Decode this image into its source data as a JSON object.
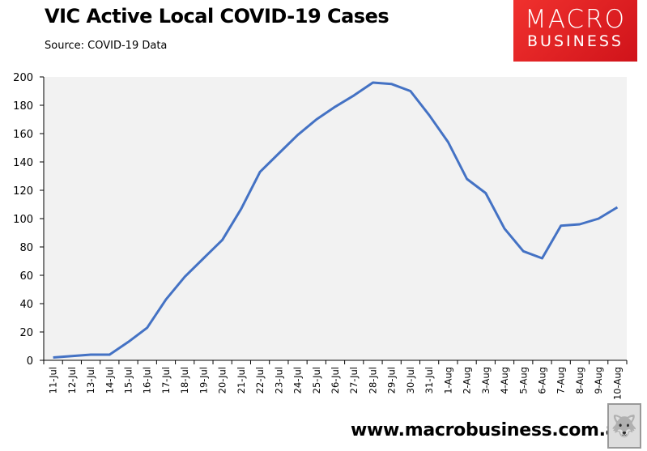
{
  "header": {
    "title": "VIC Active Local COVID-19 Cases",
    "subtitle": "Source: COVID-19 Data"
  },
  "logo": {
    "line1": "MACRO",
    "line2": "BUSINESS",
    "color": "#e8222a"
  },
  "footer": {
    "url": "www.macrobusiness.com.au",
    "mascot_icon": "wolf-icon"
  },
  "chart_data": {
    "type": "line",
    "title": "VIC Active Local COVID-19 Cases",
    "subtitle": "Source: COVID-19 Data",
    "xlabel": "",
    "ylabel": "",
    "ylim": [
      0,
      200
    ],
    "yticks": [
      0,
      20,
      40,
      60,
      80,
      100,
      120,
      140,
      160,
      180,
      200
    ],
    "grid": false,
    "legend": null,
    "plot_background": "#f2f2f2",
    "line_color": "#4472c4",
    "categories": [
      "11-Jul",
      "12-Jul",
      "13-Jul",
      "14-Jul",
      "15-Jul",
      "16-Jul",
      "17-Jul",
      "18-Jul",
      "19-Jul",
      "20-Jul",
      "21-Jul",
      "22-Jul",
      "23-Jul",
      "24-Jul",
      "25-Jul",
      "26-Jul",
      "27-Jul",
      "28-Jul",
      "29-Jul",
      "30-Jul",
      "31-Jul",
      "1-Aug",
      "2-Aug",
      "3-Aug",
      "4-Aug",
      "5-Aug",
      "6-Aug",
      "7-Aug",
      "8-Aug",
      "9-Aug",
      "10-Aug"
    ],
    "series": [
      {
        "name": "Active local cases",
        "values": [
          2,
          3,
          4,
          4,
          13,
          23,
          43,
          59,
          72,
          85,
          107,
          133,
          146,
          159,
          170,
          179,
          187,
          196,
          195,
          190,
          173,
          154,
          128,
          118,
          93,
          77,
          72,
          95,
          96,
          100,
          108
        ]
      }
    ]
  }
}
